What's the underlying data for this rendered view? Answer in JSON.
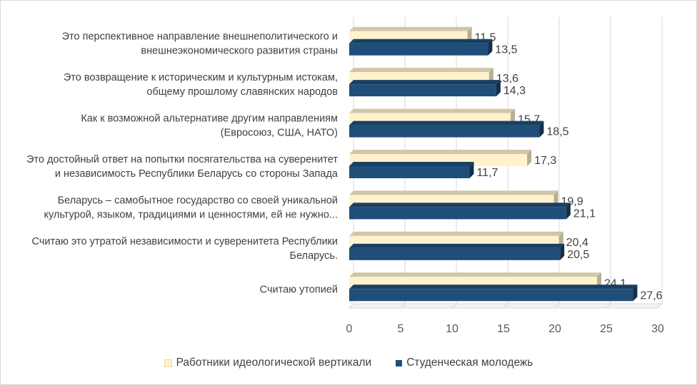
{
  "chart_data": {
    "type": "bar",
    "orientation": "horizontal",
    "style": "3d",
    "categories": [
      [
        "Считаю утопией"
      ],
      [
        "Считаю это утратой независимости и суверенитета Республики",
        "Беларусь."
      ],
      [
        "Беларусь – самобытное государство со своей уникальной",
        "культурой, языком, традициями и ценностями, ей не нужно..."
      ],
      [
        "Это достойный ответ на попытки посягательства на суверенитет",
        "и независимость Республики Беларусь со стороны Запада"
      ],
      [
        "Как к возможной альтернативе другим направлениям",
        "(Евросоюз, США, НАТО)"
      ],
      [
        "Это возвращение к историческим и культурным истокам,",
        "общему прошлому славянских народов"
      ],
      [
        "Это перспективное направление внешнеполитического и",
        "внешнеэкономического развития страны"
      ]
    ],
    "series": [
      {
        "name": "Работники идеологической вертикали",
        "color": "#FFF2CC",
        "values": [
          24.1,
          20.4,
          19.9,
          17.3,
          15.7,
          13.6,
          11.5
        ],
        "labels": [
          "24,1",
          "20,4",
          "19,9",
          "17,3",
          "15,7",
          "13,6",
          "11,5"
        ]
      },
      {
        "name": "Студенческая молодежь",
        "color": "#1F4E79",
        "values": [
          27.6,
          20.5,
          21.1,
          11.7,
          18.5,
          14.3,
          13.5
        ],
        "labels": [
          "27,6",
          "20,5",
          "21,1",
          "11,7",
          "18,5",
          "14,3",
          "13,5"
        ]
      }
    ],
    "xlim": [
      0,
      30
    ],
    "xticks": [
      "0",
      "5",
      "10",
      "15",
      "20",
      "25",
      "30"
    ],
    "grid": true,
    "legend_position": "bottom",
    "title": "",
    "xlabel": "",
    "ylabel": ""
  }
}
